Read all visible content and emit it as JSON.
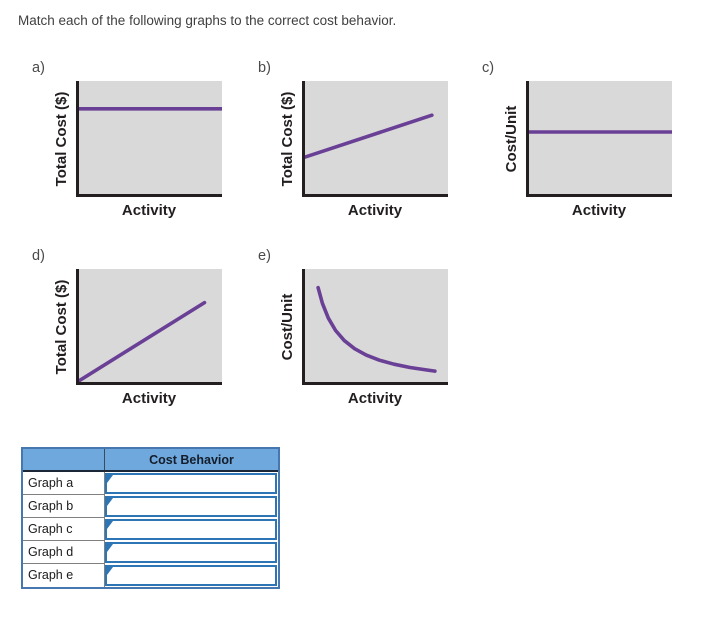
{
  "title": "Match each of the following graphs to the correct cost behavior.",
  "colors": {
    "line": "#6a4096",
    "plot_bg": "#d9d9d9",
    "axis": "#231f20",
    "header_bg": "#6fa8dc",
    "input_border": "#2e75b6",
    "table_outer_border": "#4677ae",
    "cell_border_gray": "#808080"
  },
  "chart_data": [
    {
      "id": "a",
      "label": "a)",
      "type": "line",
      "ylabel": "Total Cost ($)",
      "xlabel": "Activity",
      "trend": "flat horizontal line",
      "coords": "points normalized [x, y-from-top] within plot area",
      "points": [
        [
          0,
          0.24
        ],
        [
          1,
          0.24
        ]
      ]
    },
    {
      "id": "b",
      "label": "b)",
      "type": "line",
      "ylabel": "Total Cost ($)",
      "xlabel": "Activity",
      "trend": "increasing straight line starting above origin",
      "coords": "points normalized [x, y-from-top] within plot area",
      "points": [
        [
          0,
          0.665
        ],
        [
          0.89,
          0.295
        ]
      ]
    },
    {
      "id": "c",
      "label": "c)",
      "type": "line",
      "ylabel": "Cost/Unit",
      "xlabel": "Activity",
      "trend": "flat horizontal line",
      "coords": "points normalized [x, y-from-top] within plot area",
      "points": [
        [
          0,
          0.44
        ],
        [
          1,
          0.44
        ]
      ]
    },
    {
      "id": "d",
      "label": "d)",
      "type": "line",
      "ylabel": "Total Cost ($)",
      "xlabel": "Activity",
      "trend": "increasing straight line from origin",
      "coords": "points normalized [x, y-from-top] within plot area",
      "points": [
        [
          0.02,
          0.965
        ],
        [
          0.88,
          0.29
        ]
      ]
    },
    {
      "id": "e",
      "label": "e)",
      "type": "line",
      "ylabel": "Cost/Unit",
      "xlabel": "Activity",
      "trend": "decreasing hyperbolic curve",
      "coords": "points normalized [x, y-from-top] within plot area",
      "points": [
        [
          0.11,
          0.16
        ],
        [
          0.14,
          0.296
        ],
        [
          0.18,
          0.423
        ],
        [
          0.23,
          0.53
        ],
        [
          0.29,
          0.617
        ],
        [
          0.36,
          0.687
        ],
        [
          0.44,
          0.742
        ],
        [
          0.53,
          0.786
        ],
        [
          0.63,
          0.821
        ],
        [
          0.74,
          0.849
        ],
        [
          0.85,
          0.87
        ],
        [
          0.91,
          0.88
        ]
      ]
    }
  ],
  "table": {
    "header": "Cost Behavior",
    "rows": [
      {
        "label": "Graph a",
        "value": ""
      },
      {
        "label": "Graph b",
        "value": ""
      },
      {
        "label": "Graph c",
        "value": ""
      },
      {
        "label": "Graph d",
        "value": ""
      },
      {
        "label": "Graph e",
        "value": ""
      }
    ]
  }
}
